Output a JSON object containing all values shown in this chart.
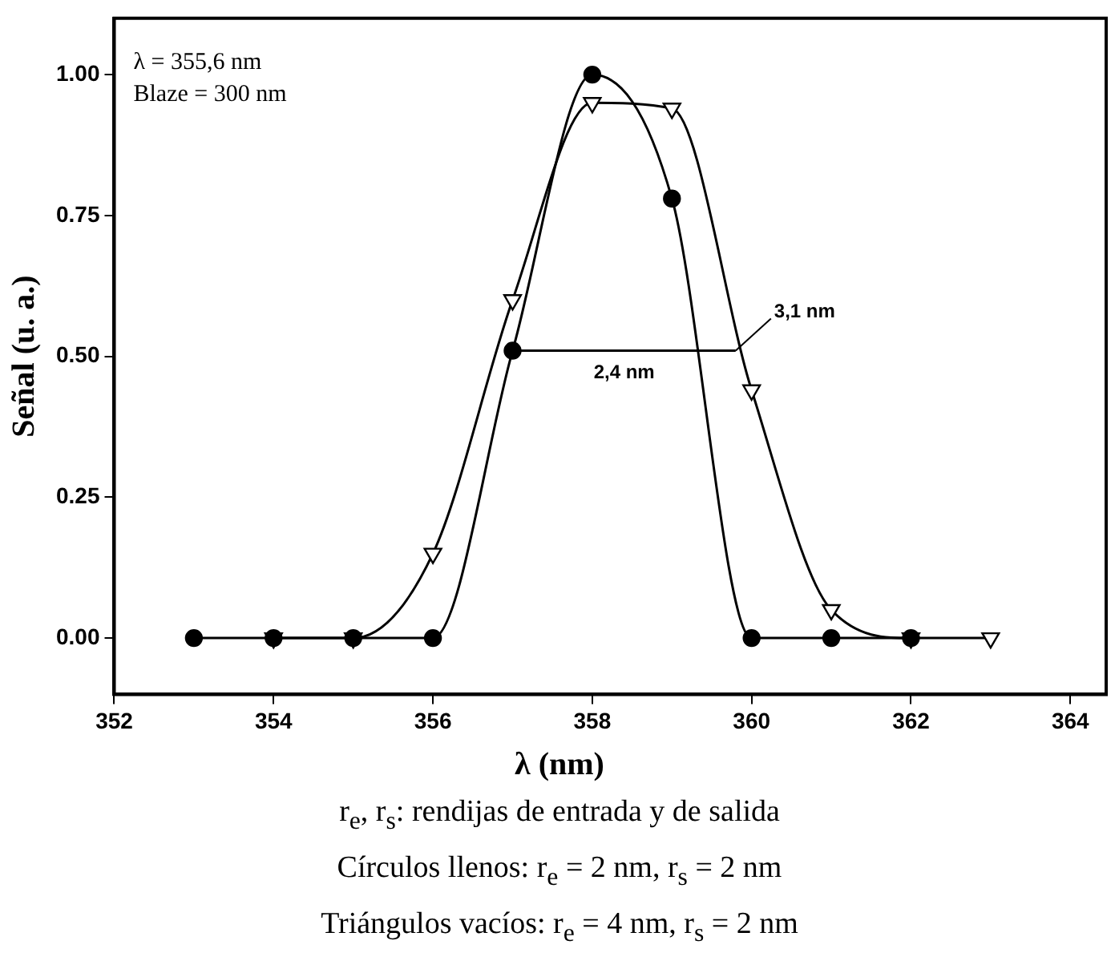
{
  "chart_data": {
    "type": "line",
    "xlabel": "λ (nm)",
    "ylabel": "Señal (u. a.)",
    "xlim": [
      352,
      364.45
    ],
    "xticks": [
      352,
      354,
      356,
      358,
      360,
      362,
      364
    ],
    "ylim": [
      -0.1,
      1.1
    ],
    "yticks": [
      {
        "value": 0,
        "label": "0.00"
      },
      {
        "value": 0.25,
        "label": "0.25"
      },
      {
        "value": 0.5,
        "label": "0.50"
      },
      {
        "value": 0.75,
        "label": "0.75"
      },
      {
        "value": 1,
        "label": "1.00"
      }
    ],
    "grid": false,
    "legend": false,
    "line_style": "solid",
    "series": [
      {
        "color": "#000000",
        "marker": "circle",
        "x": [
          353,
          354,
          355,
          356,
          357,
          358,
          359,
          360,
          361,
          362
        ],
        "values": [
          0,
          0,
          0,
          0,
          0.51,
          1.0,
          0.78,
          0,
          0,
          0
        ]
      },
      {
        "color": "#000000",
        "marker": "triangle",
        "x": [
          354,
          355,
          356,
          357,
          358,
          359,
          360,
          361,
          362,
          363
        ],
        "values": [
          0,
          0,
          0.15,
          0.6,
          0.95,
          0.94,
          0.44,
          0.05,
          0,
          0
        ]
      },
      {
        "color": "#000000",
        "marker": "none",
        "x": [
          357,
          359.8
        ],
        "values": [
          0.51,
          0.51
        ]
      }
    ],
    "annotations": [
      "λ = 355,6 nm",
      "Blaze = 300 nm",
      {
        "text": "2,4 nm",
        "x": 358.4,
        "y": 0.51
      },
      {
        "text": "3,1 nm",
        "x": 359.8,
        "y": 0.51
      },
      "r$_{e}$, r$_{s}$: rendijas de entrada y de salida",
      "Círculos llenos: r$_{e}$ = 2 nm, r$_{s}$ = 2 nm",
      "Triángulos vacíos: r$_{e}$ = 4 nm, r$_{s}$ = 2 nm"
    ]
  }
}
